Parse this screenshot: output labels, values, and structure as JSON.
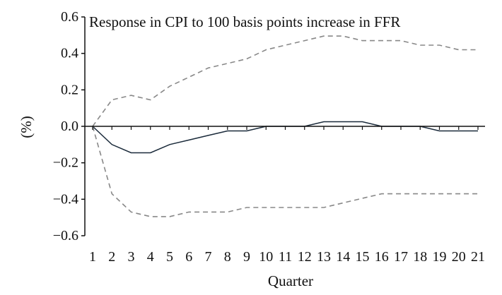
{
  "chart_data": {
    "type": "line",
    "title": "Response in CPI to 100 basis points increase in FFR",
    "xlabel": "Quarter",
    "ylabel": "(%)",
    "x": [
      1,
      2,
      3,
      4,
      5,
      6,
      7,
      8,
      9,
      10,
      11,
      12,
      13,
      14,
      15,
      16,
      17,
      18,
      19,
      20,
      21
    ],
    "xlim": [
      1,
      21
    ],
    "ylim": [
      -0.6,
      0.6
    ],
    "yticks": [
      0.6,
      0.4,
      0.2,
      0.0,
      -0.2,
      -0.4,
      -0.6
    ],
    "ytick_labels": [
      "0.6",
      "0.4",
      "0.2",
      "0.0",
      "−0.2",
      "−0.4",
      "−0.6"
    ],
    "xtick_labels": [
      "1",
      "2",
      "3",
      "4",
      "5",
      "6",
      "7",
      "8",
      "9",
      "10",
      "11",
      "12",
      "13",
      "14",
      "15",
      "16",
      "17",
      "18",
      "19",
      "20",
      "21"
    ],
    "grid": false,
    "series": [
      {
        "style": "solid",
        "color": "#1a2a3a",
        "values": [
          0.0,
          -0.1,
          -0.145,
          -0.145,
          -0.1,
          -0.075,
          -0.05,
          -0.025,
          -0.025,
          0.0,
          0.0,
          0.0,
          0.025,
          0.025,
          0.025,
          0.0,
          0.0,
          0.0,
          -0.025,
          -0.025,
          -0.025
        ]
      },
      {
        "style": "dashed",
        "color": "#888888",
        "values": [
          0.0,
          0.145,
          0.17,
          0.145,
          0.22,
          0.27,
          0.32,
          0.345,
          0.37,
          0.42,
          0.445,
          0.47,
          0.495,
          0.495,
          0.47,
          0.47,
          0.47,
          0.445,
          0.445,
          0.42,
          0.42
        ]
      },
      {
        "style": "dashed",
        "color": "#888888",
        "values": [
          0.0,
          -0.37,
          -0.47,
          -0.495,
          -0.495,
          -0.47,
          -0.47,
          -0.47,
          -0.445,
          -0.445,
          -0.445,
          -0.445,
          -0.445,
          -0.42,
          -0.395,
          -0.37,
          -0.37,
          -0.37,
          -0.37,
          -0.37,
          -0.37
        ]
      }
    ]
  }
}
